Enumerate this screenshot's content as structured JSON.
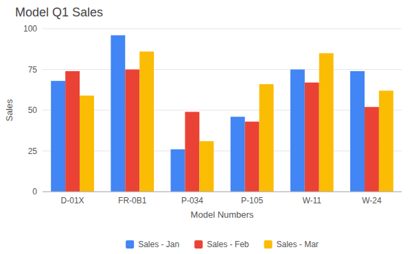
{
  "chart_data": {
    "type": "bar",
    "title": "Model Q1 Sales",
    "xlabel": "Model Numbers",
    "ylabel": "Sales",
    "categories": [
      "D-01X",
      "FR-0B1",
      "P-034",
      "P-105",
      "W-11",
      "W-24"
    ],
    "series": [
      {
        "name": "Sales - Jan",
        "color": "#4285F4",
        "values": [
          68,
          96,
          26,
          46,
          75,
          74
        ]
      },
      {
        "name": "Sales - Feb",
        "color": "#EA4335",
        "values": [
          74,
          75,
          49,
          43,
          67,
          52
        ]
      },
      {
        "name": "Sales - Mar",
        "color": "#FBBC04",
        "values": [
          59,
          86,
          31,
          66,
          85,
          62
        ]
      }
    ],
    "ylim": [
      0,
      100
    ],
    "yticks": [
      0,
      25,
      50,
      75,
      100
    ],
    "grid": true,
    "legend": "bottom"
  }
}
